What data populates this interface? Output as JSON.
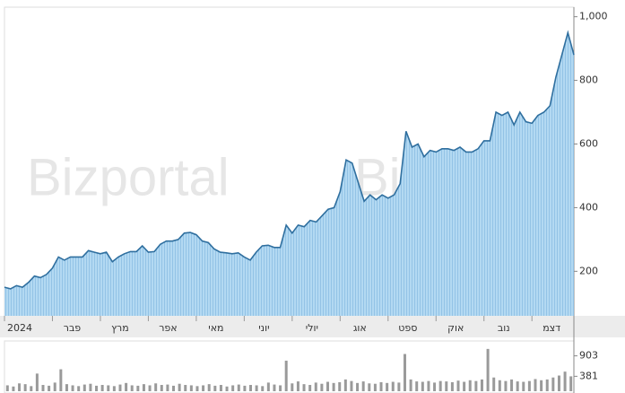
{
  "chart_data": [
    {
      "type": "area",
      "watermark": "Bizportal",
      "color": "#2f6f9f",
      "fill": "#a9d3ef",
      "categories": [
        "2024",
        null,
        null,
        null,
        null,
        null,
        null,
        null,
        "פבר",
        null,
        null,
        null,
        null,
        null,
        null,
        null,
        "מרץ",
        null,
        null,
        null,
        null,
        null,
        null,
        null,
        "אפר",
        null,
        null,
        null,
        null,
        null,
        null,
        null,
        "מאי",
        null,
        null,
        null,
        null,
        null,
        null,
        null,
        "יוני",
        null,
        null,
        null,
        null,
        null,
        null,
        null,
        "יולי",
        null,
        null,
        null,
        null,
        null,
        null,
        null,
        "אוג",
        null,
        null,
        null,
        null,
        null,
        null,
        null,
        "ספט",
        null,
        null,
        null,
        null,
        null,
        null,
        null,
        "אוק",
        null,
        null,
        null,
        null,
        null,
        null,
        null,
        "נוב",
        null,
        null,
        null,
        null,
        null,
        null,
        null,
        "דצמ",
        null,
        null,
        null,
        null,
        null,
        null,
        null
      ],
      "values": [
        150,
        145,
        155,
        150,
        165,
        185,
        180,
        190,
        210,
        245,
        235,
        245,
        245,
        245,
        265,
        260,
        255,
        260,
        230,
        245,
        255,
        262,
        262,
        280,
        260,
        262,
        285,
        295,
        295,
        300,
        320,
        322,
        315,
        295,
        290,
        270,
        260,
        258,
        255,
        258,
        245,
        235,
        260,
        280,
        282,
        275,
        275,
        345,
        320,
        345,
        340,
        360,
        355,
        375,
        395,
        400,
        450,
        550,
        540,
        480,
        420,
        440,
        425,
        440,
        430,
        440,
        475,
        640,
        590,
        600,
        560,
        580,
        575,
        585,
        585,
        580,
        590,
        575,
        575,
        585,
        610,
        610,
        700,
        690,
        700,
        660,
        700,
        670,
        665,
        690,
        700,
        720,
        810,
        880,
        950,
        880
      ],
      "ylim": [
        60,
        1030
      ],
      "yticks": [
        200,
        400,
        600,
        800,
        {
          "value": 1000,
          "label": "1,000"
        }
      ]
    },
    {
      "type": "bar",
      "color": "#9a9a9a",
      "values": [
        150,
        120,
        200,
        180,
        130,
        450,
        160,
        140,
        220,
        560,
        180,
        150,
        130,
        170,
        190,
        140,
        160,
        150,
        130,
        170,
        210,
        150,
        140,
        180,
        150,
        200,
        160,
        170,
        140,
        190,
        160,
        150,
        130,
        150,
        180,
        140,
        160,
        120,
        150,
        170,
        140,
        160,
        150,
        130,
        220,
        170,
        150,
        780,
        200,
        250,
        180,
        160,
        220,
        190,
        240,
        210,
        230,
        300,
        260,
        210,
        250,
        200,
        190,
        230,
        210,
        240,
        220,
        950,
        300,
        250,
        240,
        260,
        220,
        260,
        250,
        230,
        270,
        240,
        280,
        260,
        300,
        1080,
        350,
        280,
        260,
        300,
        250,
        240,
        260,
        310,
        280,
        300,
        350,
        400,
        500,
        380
      ],
      "ylim": [
        0,
        1100
      ],
      "yticks": [
        903,
        381
      ]
    }
  ]
}
